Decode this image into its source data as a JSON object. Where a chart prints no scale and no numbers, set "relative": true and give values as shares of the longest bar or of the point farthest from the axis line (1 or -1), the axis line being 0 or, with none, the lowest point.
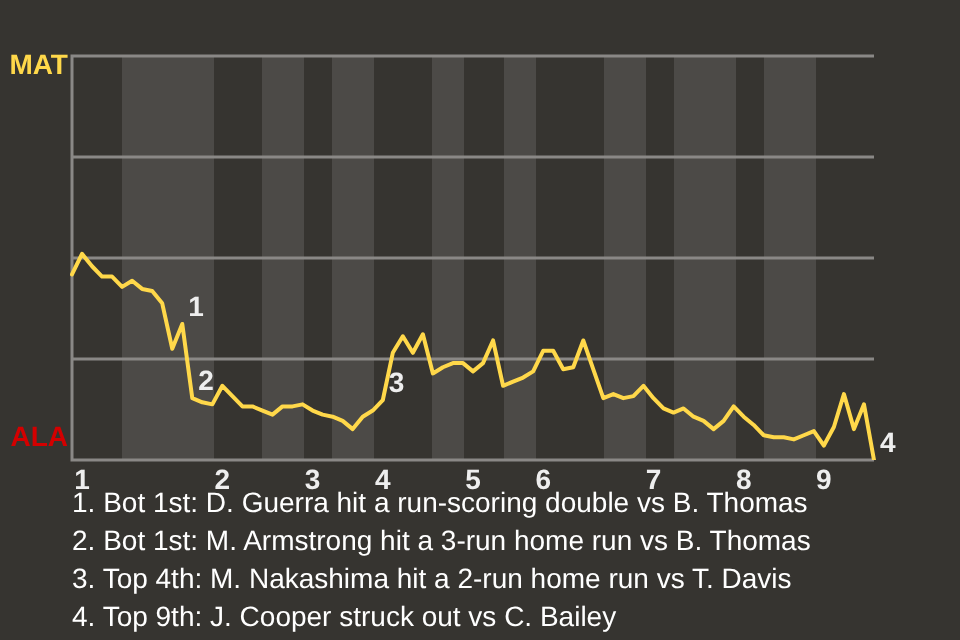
{
  "chart_data": {
    "type": "line",
    "relative": true,
    "categories": [
      null,
      "1",
      null,
      null,
      null,
      null,
      null,
      null,
      null,
      null,
      null,
      null,
      null,
      null,
      null,
      "2",
      null,
      null,
      null,
      null,
      null,
      null,
      null,
      null,
      "3",
      null,
      null,
      null,
      null,
      null,
      null,
      "4",
      null,
      null,
      null,
      null,
      null,
      null,
      null,
      null,
      "5",
      null,
      null,
      null,
      null,
      null,
      null,
      "6",
      null,
      null,
      null,
      null,
      null,
      null,
      null,
      null,
      null,
      null,
      "7",
      null,
      null,
      null,
      null,
      null,
      null,
      null,
      null,
      "8",
      null,
      null,
      null,
      null,
      null,
      null,
      null,
      "9",
      null,
      null,
      null,
      null,
      null
    ],
    "values": [
      0.9,
      1,
      0.94,
      0.89,
      0.89,
      0.84,
      0.87,
      0.83,
      0.82,
      0.76,
      0.54,
      0.66,
      0.3,
      0.28,
      0.27,
      0.36,
      0.31,
      0.26,
      0.26,
      0.24,
      0.22,
      0.26,
      0.26,
      0.27,
      0.24,
      0.22,
      0.21,
      0.19,
      0.15,
      0.21,
      0.24,
      0.29,
      0.52,
      0.6,
      0.52,
      0.61,
      0.42,
      0.45,
      0.47,
      0.47,
      0.43,
      0.47,
      0.58,
      0.36,
      0.38,
      0.4,
      0.43,
      0.53,
      0.53,
      0.44,
      0.45,
      0.58,
      0.44,
      0.3,
      0.32,
      0.3,
      0.31,
      0.36,
      0.3,
      0.25,
      0.23,
      0.25,
      0.21,
      0.19,
      0.15,
      0.19,
      0.26,
      0.21,
      0.17,
      0.12,
      0.11,
      0.11,
      0.1,
      0.12,
      0.14,
      0.07,
      0.16,
      0.32,
      0.15,
      0.27,
      0
    ],
    "color": "#ffd84a",
    "ref_lines": [
      {
        "axis": "y",
        "value": 0.49,
        "color": "#8a8886"
      },
      {
        "axis": "y",
        "value": 0.98,
        "color": "#8a8886"
      },
      {
        "axis": "y",
        "value": 1.47,
        "color": "#8a8886"
      }
    ],
    "annotations": [
      "MAT",
      "ALA",
      "1",
      "2",
      "3",
      "4",
      "1. Bot 1st: D. Guerra hit a run-scoring double vs B. Thomas",
      "2. Bot 1st: M. Armstrong hit a 3-run home run vs B. Thomas",
      "3. Top 4th: M. Nakashima hit a 2-run home run vs T. Davis",
      "4. Top 9th: J. Cooper struck out vs C. Bailey"
    ],
    "marker": "none",
    "line_style": "solid"
  }
}
